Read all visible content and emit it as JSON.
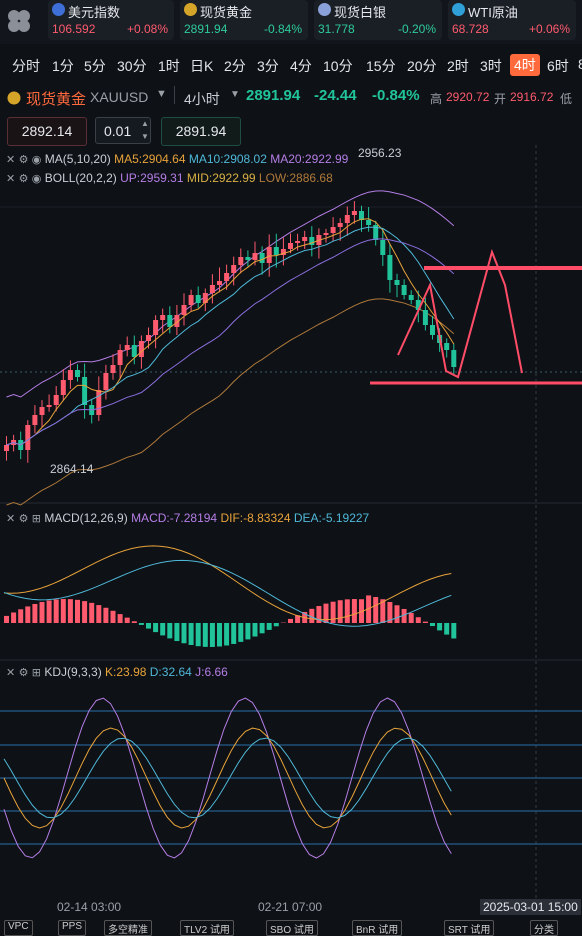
{
  "tickers": [
    {
      "name": "美元指数",
      "price": "106.592",
      "change": "+0.08%",
      "price_color": "#ff5b6e",
      "change_color": "#ff5b6e",
      "dot_color": "#3d6fd6",
      "icon": "us-flag-icon"
    },
    {
      "name": "现货黄金",
      "price": "2891.94",
      "change": "-0.84%",
      "price_color": "#2ecc9a",
      "change_color": "#2ecc9a",
      "dot_color": "#d4a528",
      "icon": "gold-coin-icon"
    },
    {
      "name": "现货白银",
      "price": "31.778",
      "change": "-0.20%",
      "price_color": "#2ecc9a",
      "change_color": "#2ecc9a",
      "dot_color": "#8aa0d8",
      "icon": "silver-coin-icon"
    },
    {
      "name": "WTI原油",
      "price": "68.728",
      "change": "+0.06%",
      "price_color": "#ff5b6e",
      "change_color": "#ff5b6e",
      "dot_color": "#2fa0d8",
      "icon": "oil-icon"
    }
  ],
  "timeframes": [
    "分时",
    "1分",
    "5分",
    "30分",
    "1时",
    "日K",
    "2分",
    "3分",
    "4分",
    "10分",
    "15分",
    "20分",
    "2时",
    "3时",
    "4时",
    "6时",
    "8"
  ],
  "active_timeframe": "4时",
  "symbol": {
    "name": "现货黄金",
    "code": "XAUUSD",
    "period": "4小时",
    "price": "2891.94",
    "change": "-24.44",
    "change_pct": "-0.84%",
    "high_label": "高",
    "high": "2920.72",
    "open_label": "开",
    "open": "2916.72",
    "low_label": "低"
  },
  "order": {
    "sell_price": "2892.14",
    "lot": "0.01",
    "buy_price": "2891.94"
  },
  "ma_legend": {
    "label": "MA(5,10,20)",
    "ma5": "MA5:2904.64",
    "ma10": "MA10:2908.02",
    "ma20": "MA20:2922.99"
  },
  "boll_legend": {
    "label": "BOLL(20,2,2)",
    "up": "UP:2959.31",
    "mid": "MID:2922.99",
    "low": "LOW:2886.68"
  },
  "price_marks": {
    "high": "2956.23",
    "low": "2864.14"
  },
  "macd_legend": {
    "label": "MACD(12,26,9)",
    "macd": "MACD:-7.28194",
    "dif": "DIF:-8.83324",
    "dea": "DEA:-5.19227"
  },
  "kdj_legend": {
    "label": "KDJ(9,3,3)",
    "k": "K:23.98",
    "d": "D:32.64",
    "j": "J:6.66"
  },
  "x_axis": [
    "02-14 03:00",
    "02-21 07:00",
    "2025-03-01 15:00"
  ],
  "bottom_tabs": [
    "VPC",
    "PPS",
    "多空精准",
    "TLV2 试用",
    "SBO 试用",
    "BnR 试用",
    "SRT 试用",
    "分类"
  ],
  "colors": {
    "up": "#ff5b6e",
    "down": "#20c39a",
    "ma5": "#e8a33a",
    "ma10": "#4fb8d8",
    "ma20": "#8c6fe0",
    "boll_up": "#b57ee6",
    "boll_mid": "#d9b044",
    "boll_low": "#b07a3a",
    "accent": "#ff6a3d",
    "annot": "#ff4d68"
  }
}
